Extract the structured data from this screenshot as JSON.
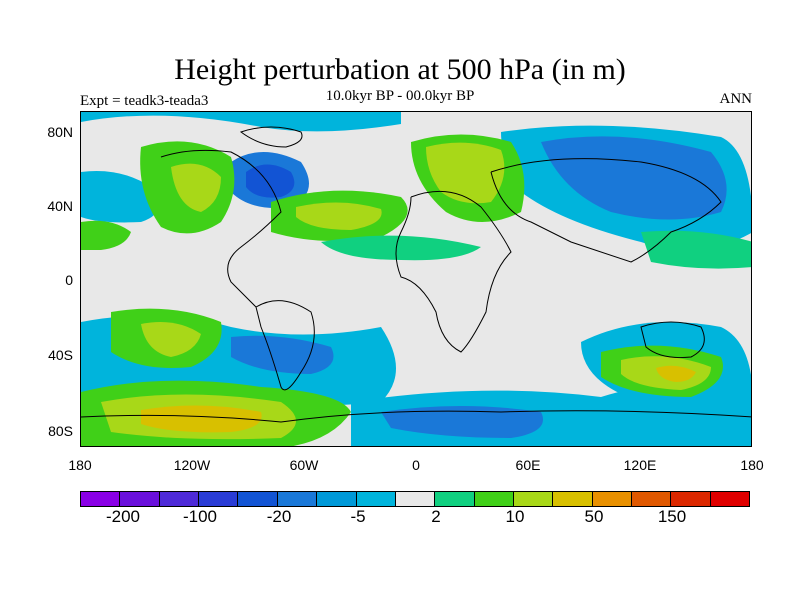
{
  "title": "Height perturbation at 500 hPa (in m)",
  "experiment": "Expt = teadk3-teada3",
  "period": "10.0kyr BP - 00.0kyr BP",
  "season": "ANN",
  "lat_labels": [
    "80N",
    "40N",
    "0",
    "40S",
    "80S"
  ],
  "lon_labels": [
    "180",
    "120W",
    "60W",
    "0",
    "60E",
    "120E",
    "180"
  ],
  "colorbar": {
    "colors": [
      "#8a00e6",
      "#6a10dc",
      "#4e2ad8",
      "#2a3cd6",
      "#1254d4",
      "#1a78d8",
      "#0099d8",
      "#00b4dc",
      "#e8e8e8",
      "#10d080",
      "#40d018",
      "#a8d818",
      "#d8c000",
      "#e89000",
      "#e05800",
      "#dc2800",
      "#e00000"
    ],
    "labels": [
      "-200",
      "-100",
      "-20",
      "-5",
      "2",
      "10",
      "50",
      "150"
    ]
  }
}
